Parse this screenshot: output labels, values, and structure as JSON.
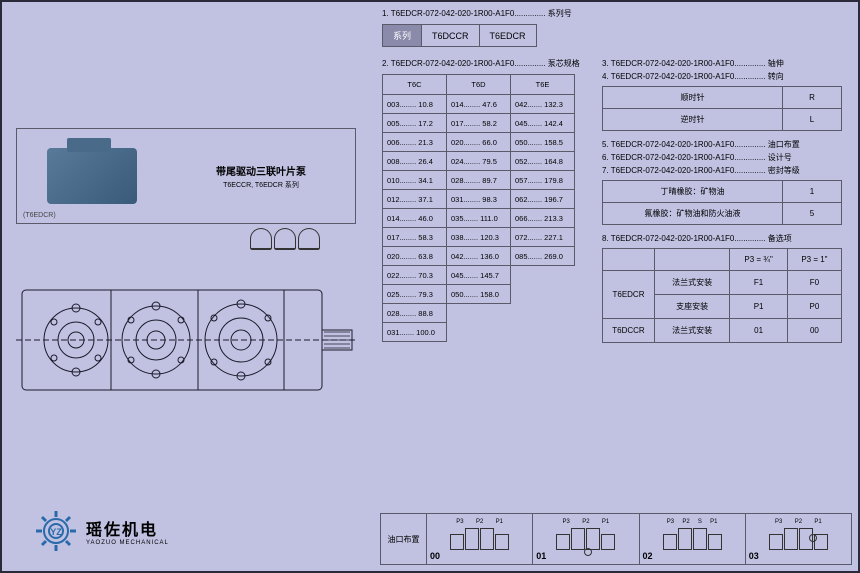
{
  "model_code": "T6EDCR-072-042-020-1R00-A1F0",
  "sections": {
    "s1": "1. T6EDCR-072-042-020-1R00-A1F0.............. 系列号",
    "s2": "2. T6EDCR-072-042-020-1R00-A1F0.............. 泵芯规格",
    "s3": "3. T6EDCR-072-042-020-1R00-A1F0.............. 轴伸",
    "s4": "4. T6EDCR-072-042-020-1R00-A1F0.............. 转向",
    "s5": "5. T6EDCR-072-042-020-1R00-A1F0.............. 油口布置",
    "s6": "6. T6EDCR-072-042-020-1R00-A1F0.............. 设计号",
    "s7": "7. T6EDCR-072-042-020-1R00-A1F0.............. 密封等级",
    "s8": "8. T6EDCR-072-042-020-1R00-A1F0.............. 备选项"
  },
  "series": {
    "header": "系列",
    "cols": [
      "T6DCCR",
      "T6EDCR"
    ]
  },
  "product": {
    "title": "带尾驱动三联叶片泵",
    "subtitle": "T6ECCR, T6EDCR 系列",
    "label": "(T6EDCR)"
  },
  "spec": {
    "headers": [
      "T6C",
      "T6D",
      "T6E"
    ],
    "rows": [
      [
        "003........ 10.8",
        "014........ 47.6",
        "042....... 132.3"
      ],
      [
        "005........ 17.2",
        "017........ 58.2",
        "045....... 142.4"
      ],
      [
        "006........ 21.3",
        "020........ 66.0",
        "050....... 158.5"
      ],
      [
        "008........ 26.4",
        "024........ 79.5",
        "052....... 164.8"
      ],
      [
        "010........ 34.1",
        "028........ 89.7",
        "057....... 179.8"
      ],
      [
        "012........ 37.1",
        "031........ 98.3",
        "062....... 196.7"
      ],
      [
        "014........ 46.0",
        "035....... 111.0",
        "066....... 213.3"
      ],
      [
        "017........ 58.3",
        "038....... 120.3",
        "072....... 227.1"
      ],
      [
        "020........ 63.8",
        "042....... 136.0",
        "085....... 269.0"
      ],
      [
        "022........ 70.3",
        "045....... 145.7",
        ""
      ],
      [
        "025........ 79.3",
        "050....... 158.0",
        ""
      ],
      [
        "028........ 88.8",
        "",
        ""
      ],
      [
        "031....... 100.0",
        "",
        ""
      ]
    ]
  },
  "rotation": {
    "rows": [
      {
        "label": "顺时针",
        "code": "R"
      },
      {
        "label": "逆时针",
        "code": "L"
      }
    ]
  },
  "seal": {
    "rows": [
      {
        "label": "丁晴橡胶：矿物油",
        "code": "1"
      },
      {
        "label": "氟橡胶：矿物油和防火油液",
        "code": "5"
      }
    ]
  },
  "options": {
    "col_headers": [
      "",
      "",
      "P3 = ¾\"",
      "P3 = 1\""
    ],
    "rows": [
      {
        "g": "T6EDCR",
        "label": "法兰式安装",
        "a": "F1",
        "b": "F0"
      },
      {
        "g": "",
        "label": "支座安装",
        "a": "P1",
        "b": "P0"
      },
      {
        "g": "T6DCCR",
        "label": "法兰式安装",
        "a": "01",
        "b": "00"
      }
    ]
  },
  "bottom": {
    "header": "油口布置",
    "cells": [
      {
        "num": "00",
        "labels": [
          "P3",
          "P2",
          "P1"
        ]
      },
      {
        "num": "01",
        "labels": [
          "P3",
          "P2",
          "P1"
        ]
      },
      {
        "num": "02",
        "labels": [
          "P3",
          "P2",
          "S",
          "P1"
        ]
      },
      {
        "num": "03",
        "labels": [
          "P3",
          "P2",
          "P1"
        ]
      }
    ]
  },
  "logo": {
    "name": "瑶佐机电",
    "sub": "YAOZUO MECHANICAL"
  },
  "colors": {
    "bg": "#c1c2e2",
    "border": "#5a5a6a",
    "hdr": "#8a8aaa"
  }
}
